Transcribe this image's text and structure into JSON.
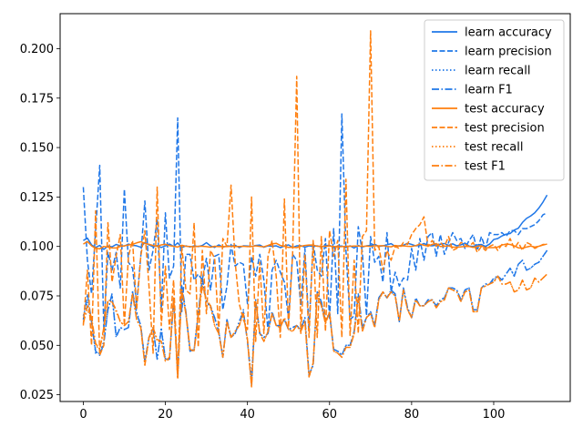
{
  "chart_data": {
    "type": "line",
    "title": "",
    "xlabel": "",
    "ylabel": "",
    "xlim": [
      -5.65,
      118.65
    ],
    "ylim": [
      0.0216,
      0.2177
    ],
    "xticks": [
      0,
      20,
      40,
      60,
      80,
      100
    ],
    "yticks": [
      0.025,
      0.05,
      0.075,
      0.1,
      0.125,
      0.15,
      0.175,
      0.2
    ],
    "ytick_labels": [
      "0.025",
      "0.050",
      "0.075",
      "0.100",
      "0.125",
      "0.150",
      "0.175",
      "0.200"
    ],
    "legend_position": "top-right",
    "grid": false,
    "x": [
      0,
      1,
      2,
      3,
      4,
      5,
      6,
      7,
      8,
      9,
      10,
      11,
      12,
      13,
      14,
      15,
      16,
      17,
      18,
      19,
      20,
      21,
      22,
      23,
      24,
      25,
      26,
      27,
      28,
      29,
      30,
      31,
      32,
      33,
      34,
      35,
      36,
      37,
      38,
      39,
      40,
      41,
      42,
      43,
      44,
      45,
      46,
      47,
      48,
      49,
      50,
      51,
      52,
      53,
      54,
      55,
      56,
      57,
      58,
      59,
      60,
      61,
      62,
      63,
      64,
      65,
      66,
      67,
      68,
      69,
      70,
      71,
      72,
      73,
      74,
      75,
      76,
      77,
      78,
      79,
      80,
      81,
      82,
      83,
      84,
      85,
      86,
      87,
      88,
      89,
      90,
      91,
      92,
      93,
      94,
      95,
      96,
      97,
      98,
      99,
      100,
      101,
      102,
      103,
      104,
      105,
      106,
      107,
      108,
      109,
      110,
      111,
      112,
      113
    ],
    "series": [
      {
        "name": "learn accuracy",
        "color": "#1f77e8",
        "style": "solid",
        "values": [
          0.103,
          0.1042,
          0.1008,
          0.0995,
          0.1005,
          0.0985,
          0.1002,
          0.0998,
          0.101,
          0.1003,
          0.1002,
          0.1012,
          0.1006,
          0.1003,
          0.0996,
          0.102,
          0.1008,
          0.0998,
          0.1004,
          0.0995,
          0.1003,
          0.1012,
          0.1,
          0.1018,
          0.0994,
          0.1003,
          0.0997,
          0.1003,
          0.0999,
          0.1005,
          0.1019,
          0.1003,
          0.0995,
          0.1008,
          0.0996,
          0.1003,
          0.1001,
          0.1006,
          0.0994,
          0.1003,
          0.1002,
          0.1,
          0.1005,
          0.1007,
          0.0996,
          0.1003,
          0.1001,
          0.1003,
          0.0994,
          0.1002,
          0.1008,
          0.0995,
          0.1003,
          0.1004,
          0.0996,
          0.1003,
          0.1,
          0.1003,
          0.0997,
          0.1005,
          0.1005,
          0.0996,
          0.1002,
          0.1002,
          0.0994,
          0.1003,
          0.0992,
          0.1005,
          0.0997,
          0.1003,
          0.1005,
          0.1011,
          0.1,
          0.1003,
          0.1008,
          0.1014,
          0.1,
          0.1003,
          0.1006,
          0.1016,
          0.101,
          0.1003,
          0.1005,
          0.1015,
          0.1005,
          0.1003,
          0.1008,
          0.1011,
          0.1015,
          0.1005,
          0.1013,
          0.1003,
          0.1008,
          0.1017,
          0.1002,
          0.1,
          0.1008,
          0.101,
          0.1,
          0.1012,
          0.1035,
          0.104,
          0.1053,
          0.1062,
          0.1065,
          0.1083,
          0.1092,
          0.1121,
          0.1142,
          0.1154,
          0.117,
          0.1194,
          0.1224,
          0.126
        ]
      },
      {
        "name": "learn precision",
        "color": "#1f77e8",
        "style": "dashed",
        "values": [
          0.13,
          0.093,
          0.076,
          0.108,
          0.141,
          0.058,
          0.097,
          0.088,
          0.097,
          0.079,
          0.129,
          0.092,
          0.089,
          0.071,
          0.095,
          0.123,
          0.088,
          0.098,
          0.114,
          0.068,
          0.117,
          0.084,
          0.09,
          0.165,
          0.067,
          0.096,
          0.096,
          0.083,
          0.086,
          0.083,
          0.094,
          0.078,
          0.095,
          0.096,
          0.068,
          0.08,
          0.101,
          0.09,
          0.092,
          0.091,
          0.071,
          0.095,
          0.085,
          0.096,
          0.083,
          0.057,
          0.088,
          0.093,
          0.087,
          0.082,
          0.063,
          0.096,
          0.093,
          0.07,
          0.099,
          0.058,
          0.102,
          0.088,
          0.085,
          0.104,
          0.063,
          0.109,
          0.066,
          0.167,
          0.098,
          0.063,
          0.065,
          0.11,
          0.097,
          0.065,
          0.105,
          0.092,
          0.095,
          0.082,
          0.107,
          0.077,
          0.087,
          0.08,
          0.084,
          0.083,
          0.099,
          0.088,
          0.104,
          0.093,
          0.105,
          0.107,
          0.095,
          0.106,
          0.096,
          0.102,
          0.107,
          0.103,
          0.104,
          0.099,
          0.103,
          0.106,
          0.098,
          0.105,
          0.099,
          0.107,
          0.106,
          0.106,
          0.107,
          0.105,
          0.108,
          0.108,
          0.106,
          0.109,
          0.109,
          0.11,
          0.111,
          0.113,
          0.116,
          0.117
        ]
      },
      {
        "name": "learn recall",
        "color": "#1f77e8",
        "style": "dotted",
        "values": [
          0.065,
          0.072,
          0.062,
          0.046,
          0.046,
          0.052,
          0.068,
          0.075,
          0.055,
          0.059,
          0.058,
          0.059,
          0.077,
          0.067,
          0.06,
          0.042,
          0.054,
          0.059,
          0.043,
          0.059,
          0.043,
          0.043,
          0.073,
          0.038,
          0.079,
          0.066,
          0.047,
          0.048,
          0.066,
          0.083,
          0.072,
          0.069,
          0.064,
          0.057,
          0.044,
          0.063,
          0.054,
          0.056,
          0.062,
          0.068,
          0.052,
          0.033,
          0.073,
          0.056,
          0.054,
          0.056,
          0.067,
          0.06,
          0.06,
          0.063,
          0.058,
          0.059,
          0.06,
          0.058,
          0.064,
          0.035,
          0.04,
          0.077,
          0.072,
          0.062,
          0.067,
          0.048,
          0.047,
          0.045,
          0.05,
          0.05,
          0.057,
          0.075,
          0.059,
          0.064,
          0.067,
          0.06,
          0.074,
          0.077,
          0.074,
          0.077,
          0.075,
          0.062,
          0.079,
          0.069,
          0.064,
          0.074,
          0.07,
          0.07,
          0.073,
          0.073,
          0.07,
          0.073,
          0.074,
          0.079,
          0.079,
          0.078,
          0.073,
          0.078,
          0.079,
          0.068,
          0.068,
          0.079,
          0.081,
          0.081,
          0.083,
          0.085,
          0.083,
          0.086,
          0.089,
          0.085,
          0.091,
          0.093,
          0.088,
          0.089,
          0.091,
          0.092,
          0.095,
          0.098
        ]
      },
      {
        "name": "learn F1",
        "color": "#1f77e8",
        "style": "dashdot",
        "values": [
          0.063,
          0.076,
          0.062,
          0.047,
          0.045,
          0.051,
          0.068,
          0.076,
          0.054,
          0.059,
          0.058,
          0.059,
          0.077,
          0.066,
          0.06,
          0.042,
          0.054,
          0.059,
          0.043,
          0.058,
          0.043,
          0.043,
          0.073,
          0.035,
          0.08,
          0.067,
          0.047,
          0.048,
          0.066,
          0.084,
          0.072,
          0.07,
          0.064,
          0.057,
          0.044,
          0.063,
          0.054,
          0.056,
          0.062,
          0.067,
          0.052,
          0.03,
          0.073,
          0.056,
          0.054,
          0.056,
          0.067,
          0.06,
          0.06,
          0.063,
          0.058,
          0.059,
          0.06,
          0.058,
          0.064,
          0.035,
          0.04,
          0.077,
          0.072,
          0.062,
          0.066,
          0.048,
          0.047,
          0.045,
          0.05,
          0.05,
          0.057,
          0.076,
          0.059,
          0.064,
          0.067,
          0.06,
          0.074,
          0.077,
          0.074,
          0.078,
          0.076,
          0.062,
          0.079,
          0.069,
          0.064,
          0.074,
          0.07,
          0.07,
          0.073,
          0.073,
          0.07,
          0.073,
          0.074,
          0.079,
          0.079,
          0.078,
          0.073,
          0.078,
          0.079,
          0.068,
          0.068,
          0.079,
          0.081,
          0.081,
          0.084,
          0.085,
          0.083,
          0.086,
          0.089,
          0.085,
          0.091,
          0.093,
          0.088,
          0.089,
          0.091,
          0.092,
          0.095,
          0.098
        ]
      },
      {
        "name": "test accuracy",
        "color": "#ff7f0e",
        "style": "solid",
        "values": [
          0.1012,
          0.1025,
          0.1003,
          0.099,
          0.0988,
          0.1,
          0.0997,
          0.0993,
          0.0992,
          0.1,
          0.1003,
          0.1007,
          0.1011,
          0.1018,
          0.1024,
          0.1015,
          0.1011,
          0.1005,
          0.1,
          0.1008,
          0.1011,
          0.1004,
          0.1001,
          0.0997,
          0.1006,
          0.1001,
          0.1,
          0.0998,
          0.1001,
          0.1001,
          0.0999,
          0.0996,
          0.1001,
          0.0999,
          0.1,
          0.0999,
          0.1001,
          0.1,
          0.1,
          0.1001,
          0.0999,
          0.1,
          0.1003,
          0.1,
          0.0998,
          0.1005,
          0.1013,
          0.1016,
          0.1005,
          0.1001,
          0.0995,
          0.0996,
          0.0994,
          0.1001,
          0.1005,
          0.1007,
          0.1007,
          0.1001,
          0.1001,
          0.1001,
          0.1002,
          0.1,
          0.0998,
          0.0999,
          0.1001,
          0.1001,
          0.1002,
          0.1002,
          0.1,
          0.1002,
          0.1,
          0.1003,
          0.1003,
          0.1004,
          0.1,
          0.0998,
          0.1005,
          0.1002,
          0.1003,
          0.1001,
          0.1,
          0.1004,
          0.1012,
          0.1006,
          0.1002,
          0.101,
          0.1015,
          0.1,
          0.1001,
          0.1003,
          0.0996,
          0.0996,
          0.0998,
          0.1,
          0.1,
          0.0995,
          0.1001,
          0.1003,
          0.0993,
          0.0994,
          0.0994,
          0.0997,
          0.1007,
          0.1012,
          0.101,
          0.1003,
          0.0993,
          0.0991,
          0.0997,
          0.1002,
          0.0997,
          0.1001,
          0.1007,
          0.1012
        ]
      },
      {
        "name": "test precision",
        "color": "#ff7f0e",
        "style": "dashed",
        "values": [
          0.06,
          0.088,
          0.05,
          0.118,
          0.045,
          0.05,
          0.112,
          0.082,
          0.095,
          0.106,
          0.06,
          0.095,
          0.103,
          0.068,
          0.095,
          0.108,
          0.08,
          0.046,
          0.13,
          0.06,
          0.09,
          0.058,
          0.083,
          0.034,
          0.1,
          0.078,
          0.076,
          0.112,
          0.049,
          0.098,
          0.066,
          0.098,
          0.094,
          0.057,
          0.104,
          0.1,
          0.131,
          0.092,
          0.071,
          0.063,
          0.058,
          0.125,
          0.052,
          0.092,
          0.056,
          0.095,
          0.103,
          0.085,
          0.054,
          0.124,
          0.059,
          0.096,
          0.186,
          0.056,
          0.096,
          0.054,
          0.103,
          0.054,
          0.105,
          0.057,
          0.108,
          0.095,
          0.103,
          0.054,
          0.134,
          0.055,
          0.093,
          0.056,
          0.105,
          0.108,
          0.209,
          0.098,
          0.1,
          0.088,
          0.098,
          0.093,
          0.1,
          0.099,
          0.102,
          0.101,
          0.106,
          0.109,
          0.111,
          0.115,
          0.1,
          0.103,
          0.1,
          0.102,
          0.1,
          0.105,
          0.098,
          0.099,
          0.102,
          0.101,
          0.1,
          0.102,
          0.097,
          0.1,
          0.098,
          0.1,
          0.101,
          0.098,
          0.101,
          0.1,
          0.104,
          0.099,
          0.102,
          0.098,
          0.102,
          0.101,
          0.099,
          0.1,
          0.101,
          0.101
        ]
      },
      {
        "name": "test recall",
        "color": "#ff7f0e",
        "style": "dotted",
        "values": [
          0.062,
          0.068,
          0.063,
          0.05,
          0.048,
          0.058,
          0.072,
          0.072,
          0.067,
          0.062,
          0.06,
          0.062,
          0.076,
          0.063,
          0.059,
          0.04,
          0.053,
          0.059,
          0.052,
          0.052,
          0.042,
          0.043,
          0.074,
          0.033,
          0.078,
          0.066,
          0.048,
          0.047,
          0.065,
          0.08,
          0.073,
          0.07,
          0.06,
          0.056,
          0.044,
          0.062,
          0.054,
          0.057,
          0.06,
          0.066,
          0.053,
          0.029,
          0.072,
          0.056,
          0.052,
          0.057,
          0.066,
          0.06,
          0.059,
          0.064,
          0.058,
          0.057,
          0.06,
          0.057,
          0.062,
          0.034,
          0.041,
          0.076,
          0.07,
          0.061,
          0.067,
          0.047,
          0.046,
          0.044,
          0.049,
          0.049,
          0.056,
          0.074,
          0.057,
          0.064,
          0.066,
          0.059,
          0.073,
          0.077,
          0.074,
          0.077,
          0.075,
          0.062,
          0.078,
          0.068,
          0.064,
          0.073,
          0.07,
          0.07,
          0.072,
          0.073,
          0.069,
          0.072,
          0.073,
          0.079,
          0.078,
          0.077,
          0.072,
          0.077,
          0.078,
          0.067,
          0.067,
          0.079,
          0.08,
          0.081,
          0.082,
          0.085,
          0.081,
          0.081,
          0.082,
          0.077,
          0.078,
          0.083,
          0.078,
          0.079,
          0.084,
          0.082,
          0.084,
          0.086
        ]
      },
      {
        "name": "test F1",
        "color": "#ff7f0e",
        "style": "dashdot",
        "values": [
          0.061,
          0.07,
          0.064,
          0.051,
          0.048,
          0.059,
          0.073,
          0.072,
          0.068,
          0.062,
          0.06,
          0.062,
          0.076,
          0.063,
          0.059,
          0.04,
          0.054,
          0.059,
          0.053,
          0.052,
          0.042,
          0.044,
          0.074,
          0.033,
          0.078,
          0.066,
          0.048,
          0.047,
          0.065,
          0.08,
          0.073,
          0.07,
          0.06,
          0.056,
          0.044,
          0.062,
          0.054,
          0.057,
          0.06,
          0.066,
          0.053,
          0.029,
          0.072,
          0.056,
          0.052,
          0.057,
          0.066,
          0.06,
          0.059,
          0.064,
          0.058,
          0.057,
          0.06,
          0.057,
          0.062,
          0.034,
          0.041,
          0.076,
          0.07,
          0.061,
          0.067,
          0.047,
          0.046,
          0.044,
          0.049,
          0.049,
          0.056,
          0.074,
          0.057,
          0.064,
          0.066,
          0.059,
          0.073,
          0.077,
          0.074,
          0.077,
          0.075,
          0.062,
          0.078,
          0.068,
          0.064,
          0.073,
          0.07,
          0.07,
          0.072,
          0.073,
          0.069,
          0.072,
          0.073,
          0.079,
          0.078,
          0.077,
          0.072,
          0.077,
          0.078,
          0.067,
          0.067,
          0.079,
          0.08,
          0.081,
          0.082,
          0.085,
          0.081,
          0.081,
          0.082,
          0.077,
          0.078,
          0.083,
          0.078,
          0.079,
          0.084,
          0.082,
          0.084,
          0.086
        ]
      }
    ]
  }
}
